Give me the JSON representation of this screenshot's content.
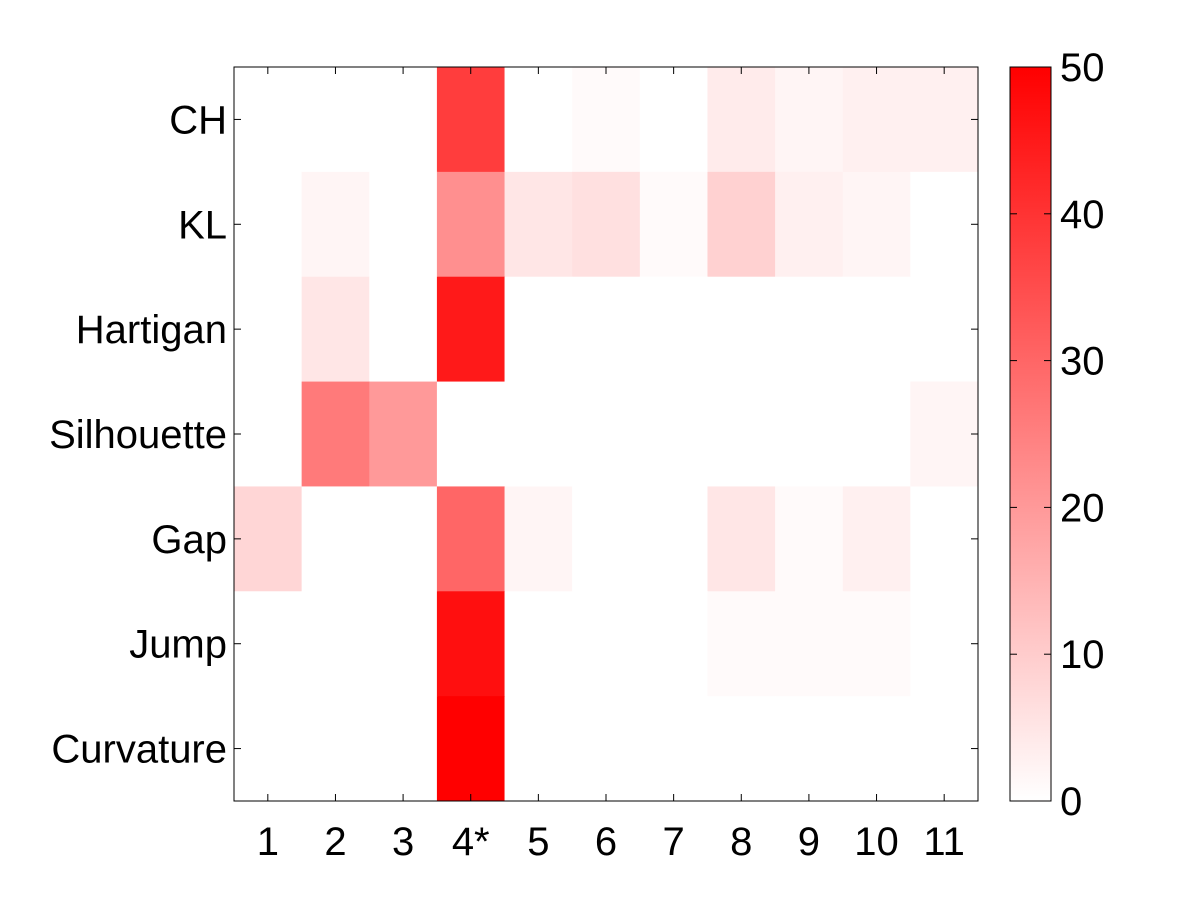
{
  "chart_data": {
    "type": "heatmap",
    "x_categories": [
      "1",
      "2",
      "3",
      "4*",
      "5",
      "6",
      "7",
      "8",
      "9",
      "10",
      "11"
    ],
    "y_categories": [
      "CH",
      "KL",
      "Hartigan",
      "Silhouette",
      "Gap",
      "Jump",
      "Curvature"
    ],
    "values": [
      [
        0,
        0,
        0,
        38,
        0,
        1,
        0,
        4,
        2,
        3,
        3
      ],
      [
        0,
        2,
        0,
        22,
        5,
        6,
        1,
        9,
        3,
        2,
        0
      ],
      [
        0,
        5,
        0,
        45,
        0,
        0,
        0,
        0,
        0,
        0,
        0
      ],
      [
        0,
        26,
        20,
        0,
        0,
        0,
        0,
        0,
        0,
        0,
        2
      ],
      [
        8,
        0,
        0,
        30,
        2,
        0,
        0,
        5,
        1,
        3,
        0
      ],
      [
        0,
        0,
        0,
        47,
        0,
        0,
        0,
        1,
        1,
        1,
        0
      ],
      [
        0,
        0,
        0,
        50,
        0,
        0,
        0,
        0,
        0,
        0,
        0
      ]
    ],
    "colorbar": {
      "range": [
        0,
        50
      ],
      "ticks": [
        "0",
        "10",
        "20",
        "30",
        "40",
        "50"
      ],
      "colors": [
        "#ffffff",
        "#ff0000"
      ]
    },
    "title": "",
    "xlabel": "",
    "ylabel": ""
  }
}
